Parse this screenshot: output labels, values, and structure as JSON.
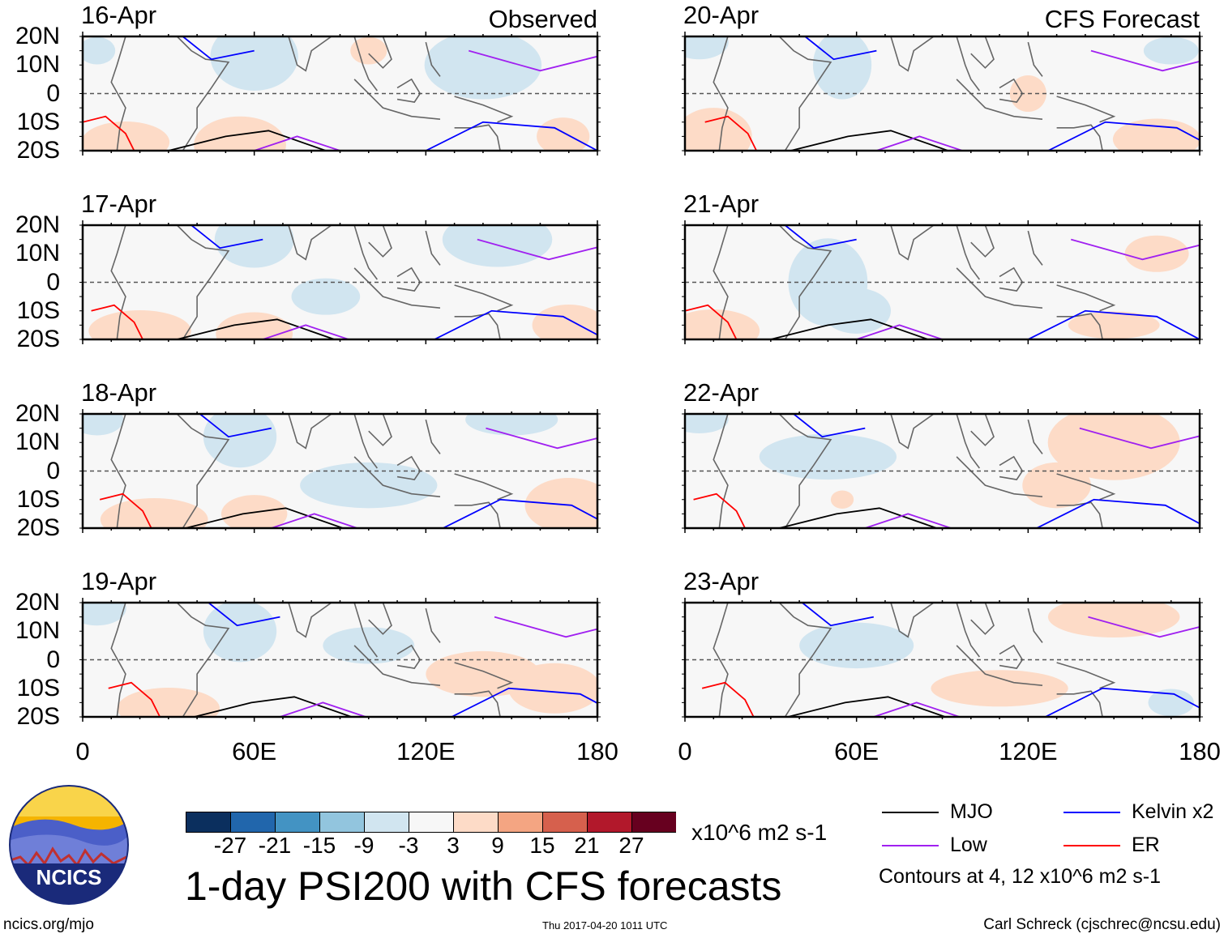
{
  "chart_data": {
    "type": "heatmap",
    "title": "1-day PSI200 with CFS forecasts",
    "variable": "PSI200 anomaly",
    "units": "x10^6 m2 s-1",
    "columns": [
      {
        "header": "Observed",
        "dates": [
          "16-Apr",
          "17-Apr",
          "18-Apr",
          "19-Apr"
        ]
      },
      {
        "header": "CFS Forecast",
        "dates": [
          "20-Apr",
          "21-Apr",
          "22-Apr",
          "23-Apr"
        ]
      }
    ],
    "y_ticks": [
      "20N",
      "10N",
      "0",
      "10S",
      "20S"
    ],
    "x_ticks": [
      "0",
      "60E",
      "120E",
      "180"
    ],
    "xlim": [
      0,
      180
    ],
    "ylim": [
      -20,
      20
    ],
    "colorbar": {
      "levels": [
        -27,
        -21,
        -15,
        -9,
        -3,
        3,
        9,
        15,
        21,
        27
      ],
      "labels": [
        "-27",
        "-21",
        "-15",
        "-9",
        "-3",
        "3",
        "9",
        "15",
        "21",
        "27"
      ],
      "colors": [
        "#0b2f5e",
        "#2166ac",
        "#4393c3",
        "#92c5de",
        "#d1e5f0",
        "#f7f7f7",
        "#fddbc7",
        "#f4a582",
        "#d6604d",
        "#b2182b",
        "#67001f"
      ]
    },
    "contour_legend": [
      {
        "name": "MJO",
        "color": "#000000"
      },
      {
        "name": "Kelvin x2",
        "color": "#0000ff"
      },
      {
        "name": "Low",
        "color": "#a020f0"
      },
      {
        "name": "ER",
        "color": "#ff0000"
      }
    ],
    "contour_note": "Contours at 4, 12 x10^6 m2 s-1"
  },
  "footer": {
    "logo_text": "NCICS",
    "url": "ncics.org/mjo",
    "timestamp": "Thu 2017-04-20 1011 UTC",
    "author": "Carl Schreck (cjschrec@ncsu.edu)"
  }
}
